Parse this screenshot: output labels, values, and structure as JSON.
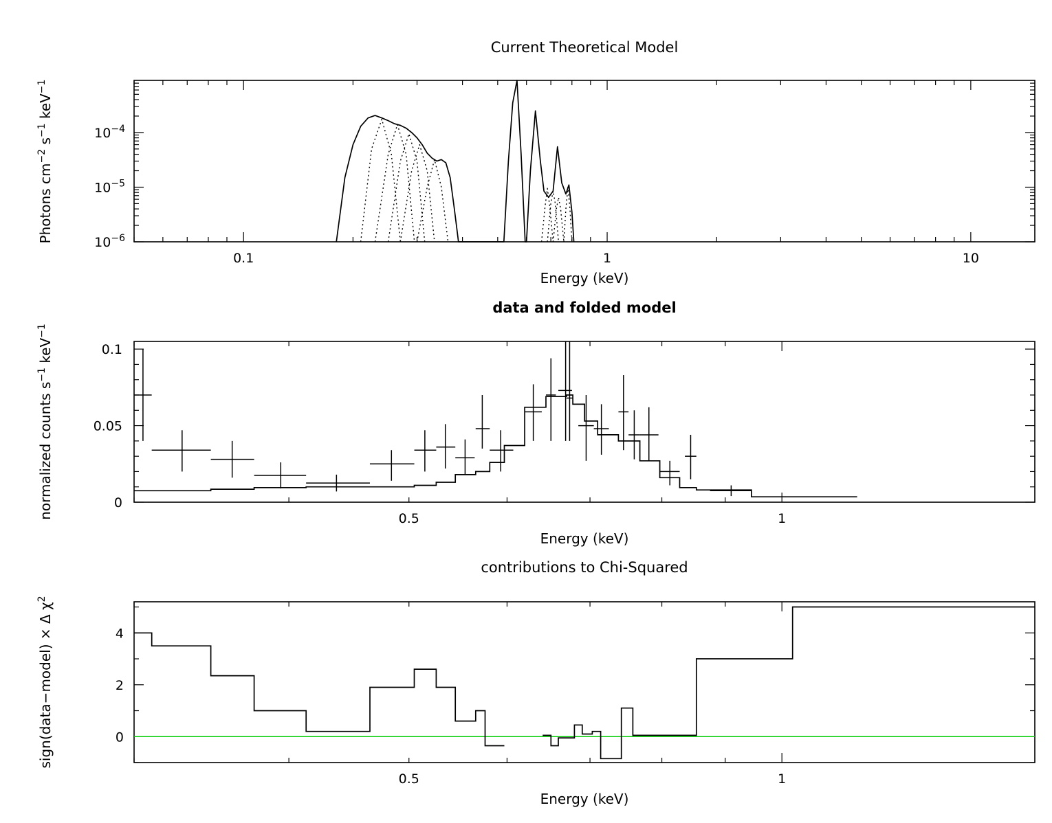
{
  "chart_data": [
    {
      "type": "line",
      "title": "Current Theoretical Model",
      "xlabel": "Energy (keV)",
      "ylabel_parts": [
        "Photons cm",
        "−2",
        " s",
        "−1",
        " keV",
        "−1"
      ],
      "x_scale": "log",
      "y_scale": "log",
      "xlim": [
        0.05,
        15.0
      ],
      "ylim": [
        1e-06,
        0.0009
      ],
      "x_ticks": [
        {
          "value": 0.1,
          "label": "0.1"
        },
        {
          "value": 1,
          "label": "1"
        },
        {
          "value": 10,
          "label": "10"
        }
      ],
      "y_ticks": [
        {
          "value": 1e-06,
          "exp": "−6"
        },
        {
          "value": 1e-05,
          "exp": "−5"
        },
        {
          "value": 0.0001,
          "exp": "−4"
        }
      ],
      "y_tick_base": "10",
      "series": [
        {
          "style": "solid",
          "points": [
            [
              0.18,
              1e-06
            ],
            [
              0.19,
              1.5e-05
            ],
            [
              0.2,
              6e-05
            ],
            [
              0.21,
              0.00013
            ],
            [
              0.22,
              0.000185
            ],
            [
              0.23,
              0.000205
            ],
            [
              0.24,
              0.000185
            ],
            [
              0.25,
              0.000165
            ],
            [
              0.26,
              0.000145
            ],
            [
              0.27,
              0.000135
            ],
            [
              0.28,
              0.00012
            ],
            [
              0.29,
              0.0001
            ],
            [
              0.3,
              8e-05
            ],
            [
              0.31,
              6e-05
            ],
            [
              0.32,
              4.2e-05
            ],
            [
              0.33,
              3.4e-05
            ],
            [
              0.34,
              3e-05
            ],
            [
              0.35,
              3.2e-05
            ],
            [
              0.36,
              2.8e-05
            ],
            [
              0.37,
              1.5e-05
            ],
            [
              0.38,
              4e-06
            ],
            [
              0.39,
              1e-06
            ],
            [
              0.52,
              1e-06
            ],
            [
              0.535,
              3e-05
            ],
            [
              0.55,
              0.00035
            ],
            [
              0.565,
              0.0009
            ],
            [
              0.58,
              4e-05
            ],
            [
              0.595,
              1e-06
            ],
            [
              0.6,
              1e-06
            ],
            [
              0.615,
              2e-05
            ],
            [
              0.635,
              0.00025
            ],
            [
              0.655,
              3e-05
            ],
            [
              0.67,
              8.5e-06
            ],
            [
              0.69,
              6.5e-06
            ],
            [
              0.71,
              8.5e-06
            ],
            [
              0.73,
              5.5e-05
            ],
            [
              0.75,
              1.2e-05
            ],
            [
              0.77,
              7.5e-06
            ],
            [
              0.785,
              1.1e-05
            ],
            [
              0.8,
              3.5e-06
            ],
            [
              0.81,
              1e-06
            ]
          ]
        },
        {
          "style": "dotted",
          "points": [
            [
              0.21,
              1e-06
            ],
            [
              0.225,
              5e-05
            ],
            [
              0.24,
              0.000175
            ],
            [
              0.255,
              4e-05
            ],
            [
              0.27,
              1e-06
            ]
          ]
        },
        {
          "style": "dotted",
          "points": [
            [
              0.23,
              1e-06
            ],
            [
              0.25,
              4e-05
            ],
            [
              0.265,
              0.00014
            ],
            [
              0.28,
              4e-05
            ],
            [
              0.295,
              1e-06
            ]
          ]
        },
        {
          "style": "dotted",
          "points": [
            [
              0.25,
              1e-06
            ],
            [
              0.27,
              3e-05
            ],
            [
              0.285,
              9.5e-05
            ],
            [
              0.3,
              3e-05
            ],
            [
              0.315,
              1e-06
            ]
          ]
        },
        {
          "style": "dotted",
          "points": [
            [
              0.27,
              1e-06
            ],
            [
              0.29,
              2e-05
            ],
            [
              0.305,
              6e-05
            ],
            [
              0.32,
              2e-05
            ],
            [
              0.335,
              1e-06
            ]
          ]
        },
        {
          "style": "dotted",
          "points": [
            [
              0.3,
              1e-06
            ],
            [
              0.32,
              1e-05
            ],
            [
              0.335,
              3.2e-05
            ],
            [
              0.35,
              1e-05
            ],
            [
              0.365,
              1e-06
            ]
          ]
        },
        {
          "style": "dotted",
          "points": [
            [
              0.66,
              1e-06
            ],
            [
              0.675,
              4.5e-06
            ],
            [
              0.685,
              9.5e-06
            ],
            [
              0.695,
              4.5e-06
            ],
            [
              0.71,
              1e-06
            ]
          ]
        },
        {
          "style": "dotted",
          "points": [
            [
              0.685,
              1e-06
            ],
            [
              0.7,
              5e-06
            ],
            [
              0.71,
              8.5e-06
            ],
            [
              0.72,
              5e-06
            ],
            [
              0.735,
              1e-06
            ]
          ]
        },
        {
          "style": "dotted",
          "points": [
            [
              0.71,
              1e-06
            ],
            [
              0.725,
              4e-06
            ],
            [
              0.735,
              6.5e-06
            ],
            [
              0.745,
              4e-06
            ],
            [
              0.76,
              1e-06
            ]
          ]
        },
        {
          "style": "dotted",
          "points": [
            [
              0.76,
              1e-06
            ],
            [
              0.77,
              4e-06
            ],
            [
              0.78,
              1e-05
            ],
            [
              0.79,
              4e-06
            ],
            [
              0.8,
              1e-06
            ]
          ]
        }
      ]
    },
    {
      "type": "scatter",
      "title": "data and folded model",
      "xlabel": "Energy (keV)",
      "ylabel_parts": [
        "normalized counts s",
        "−1",
        " keV",
        "−1"
      ],
      "x_scale": "log",
      "xlim": [
        0.3,
        1.6
      ],
      "ylim": [
        0,
        0.105
      ],
      "x_ticks": [
        {
          "value": 0.5,
          "label": "0.5"
        },
        {
          "value": 1,
          "label": "1"
        }
      ],
      "y_ticks": [
        {
          "value": 0,
          "label": "0"
        },
        {
          "value": 0.05,
          "label": "0.05"
        },
        {
          "value": 0.1,
          "label": "0.1"
        }
      ],
      "data_points": [
        {
          "x": 0.305,
          "xlo": 0.3,
          "xhi": 0.31,
          "y": 0.07,
          "ylo": 0.04,
          "yhi": 0.1
        },
        {
          "x": 0.328,
          "xlo": 0.31,
          "xhi": 0.346,
          "y": 0.034,
          "ylo": 0.02,
          "yhi": 0.047
        },
        {
          "x": 0.36,
          "xlo": 0.346,
          "xhi": 0.375,
          "y": 0.028,
          "ylo": 0.016,
          "yhi": 0.04
        },
        {
          "x": 0.394,
          "xlo": 0.375,
          "xhi": 0.413,
          "y": 0.0175,
          "ylo": 0.009,
          "yhi": 0.026
        },
        {
          "x": 0.437,
          "xlo": 0.413,
          "xhi": 0.465,
          "y": 0.0125,
          "ylo": 0.007,
          "yhi": 0.018
        },
        {
          "x": 0.484,
          "xlo": 0.465,
          "xhi": 0.505,
          "y": 0.025,
          "ylo": 0.014,
          "yhi": 0.034
        },
        {
          "x": 0.515,
          "xlo": 0.505,
          "xhi": 0.526,
          "y": 0.034,
          "ylo": 0.02,
          "yhi": 0.047
        },
        {
          "x": 0.535,
          "xlo": 0.526,
          "xhi": 0.545,
          "y": 0.036,
          "ylo": 0.022,
          "yhi": 0.051
        },
        {
          "x": 0.555,
          "xlo": 0.545,
          "xhi": 0.565,
          "y": 0.029,
          "ylo": 0.018,
          "yhi": 0.041
        },
        {
          "x": 0.573,
          "xlo": 0.566,
          "xhi": 0.581,
          "y": 0.048,
          "ylo": 0.035,
          "yhi": 0.07
        },
        {
          "x": 0.593,
          "xlo": 0.581,
          "xhi": 0.607,
          "y": 0.034,
          "ylo": 0.02,
          "yhi": 0.047
        },
        {
          "x": 0.63,
          "xlo": 0.62,
          "xhi": 0.64,
          "y": 0.059,
          "ylo": 0.04,
          "yhi": 0.077
        },
        {
          "x": 0.651,
          "xlo": 0.645,
          "xhi": 0.657,
          "y": 0.07,
          "ylo": 0.04,
          "yhi": 0.094
        },
        {
          "x": 0.669,
          "xlo": 0.66,
          "xhi": 0.677,
          "y": 0.073,
          "ylo": 0.04,
          "yhi": 0.105
        },
        {
          "x": 0.674,
          "xlo": 0.67,
          "xhi": 0.678,
          "y": 0.068,
          "ylo": 0.04,
          "yhi": 0.105
        },
        {
          "x": 0.695,
          "xlo": 0.685,
          "xhi": 0.705,
          "y": 0.05,
          "ylo": 0.027,
          "yhi": 0.07
        },
        {
          "x": 0.715,
          "xlo": 0.705,
          "xhi": 0.725,
          "y": 0.048,
          "ylo": 0.031,
          "yhi": 0.064
        },
        {
          "x": 0.745,
          "xlo": 0.738,
          "xhi": 0.752,
          "y": 0.059,
          "ylo": 0.034,
          "yhi": 0.083
        },
        {
          "x": 0.76,
          "xlo": 0.752,
          "xhi": 0.768,
          "y": 0.044,
          "ylo": 0.028,
          "yhi": 0.06
        },
        {
          "x": 0.781,
          "xlo": 0.768,
          "xhi": 0.795,
          "y": 0.044,
          "ylo": 0.027,
          "yhi": 0.062
        },
        {
          "x": 0.812,
          "xlo": 0.797,
          "xhi": 0.827,
          "y": 0.02,
          "ylo": 0.011,
          "yhi": 0.027
        },
        {
          "x": 0.844,
          "xlo": 0.835,
          "xhi": 0.853,
          "y": 0.03,
          "ylo": 0.015,
          "yhi": 0.044
        },
        {
          "x": 0.91,
          "xlo": 0.875,
          "xhi": 0.945,
          "y": 0.0075,
          "ylo": 0.004,
          "yhi": 0.011
        }
      ],
      "model_step": [
        [
          0.3,
          0.0075
        ],
        [
          0.346,
          0.0075
        ],
        [
          0.346,
          0.0085
        ],
        [
          0.375,
          0.0085
        ],
        [
          0.375,
          0.0095
        ],
        [
          0.413,
          0.0095
        ],
        [
          0.413,
          0.01
        ],
        [
          0.505,
          0.01
        ],
        [
          0.505,
          0.011
        ],
        [
          0.526,
          0.011
        ],
        [
          0.526,
          0.013
        ],
        [
          0.545,
          0.013
        ],
        [
          0.545,
          0.018
        ],
        [
          0.566,
          0.018
        ],
        [
          0.566,
          0.02
        ],
        [
          0.581,
          0.02
        ],
        [
          0.581,
          0.026
        ],
        [
          0.597,
          0.026
        ],
        [
          0.597,
          0.037
        ],
        [
          0.62,
          0.037
        ],
        [
          0.62,
          0.062
        ],
        [
          0.645,
          0.062
        ],
        [
          0.645,
          0.069
        ],
        [
          0.67,
          0.069
        ],
        [
          0.67,
          0.07
        ],
        [
          0.678,
          0.07
        ],
        [
          0.678,
          0.064
        ],
        [
          0.693,
          0.064
        ],
        [
          0.693,
          0.053
        ],
        [
          0.71,
          0.053
        ],
        [
          0.71,
          0.044
        ],
        [
          0.738,
          0.044
        ],
        [
          0.738,
          0.04
        ],
        [
          0.768,
          0.04
        ],
        [
          0.768,
          0.027
        ],
        [
          0.797,
          0.027
        ],
        [
          0.797,
          0.016
        ],
        [
          0.827,
          0.016
        ],
        [
          0.827,
          0.0095
        ],
        [
          0.853,
          0.0095
        ],
        [
          0.853,
          0.008
        ],
        [
          0.945,
          0.008
        ],
        [
          0.945,
          0.0035
        ],
        [
          1.15,
          0.0035
        ]
      ]
    },
    {
      "type": "line",
      "title": "contributions to Chi-Squared",
      "xlabel": "Energy (keV)",
      "ylabel_parts": [
        "sign(data−model) × Δ χ",
        "2"
      ],
      "x_scale": "log",
      "xlim": [
        0.3,
        1.6
      ],
      "ylim": [
        -1.0,
        5.2
      ],
      "x_ticks": [
        {
          "value": 0.5,
          "label": "0.5"
        },
        {
          "value": 1,
          "label": "1"
        }
      ],
      "y_ticks": [
        {
          "value": 0,
          "label": "0"
        },
        {
          "value": 2,
          "label": "2"
        },
        {
          "value": 4,
          "label": "4"
        }
      ],
      "zero_line_color": "#00cc00",
      "steps": [
        [
          0.3,
          4.0
        ],
        [
          0.31,
          4.0
        ],
        [
          0.31,
          3.5
        ],
        [
          0.346,
          3.5
        ],
        [
          0.346,
          2.35
        ],
        [
          0.375,
          2.35
        ],
        [
          0.375,
          1.0
        ],
        [
          0.413,
          1.0
        ],
        [
          0.413,
          0.2
        ],
        [
          0.465,
          0.2
        ],
        [
          0.465,
          1.9
        ],
        [
          0.505,
          1.9
        ],
        [
          0.505,
          2.6
        ],
        [
          0.526,
          2.6
        ],
        [
          0.526,
          1.9
        ],
        [
          0.545,
          1.9
        ],
        [
          0.545,
          0.6
        ],
        [
          0.566,
          0.6
        ],
        [
          0.566,
          1.0
        ],
        [
          0.576,
          1.0
        ],
        [
          0.576,
          -0.35
        ],
        [
          0.597,
          -0.35
        ],
        [
          null,
          null
        ],
        [
          0.641,
          0.05
        ],
        [
          0.651,
          0.05
        ],
        [
          0.651,
          -0.35
        ],
        [
          0.66,
          -0.35
        ],
        [
          0.66,
          -0.05
        ],
        [
          0.68,
          -0.05
        ],
        [
          0.68,
          0.45
        ],
        [
          0.69,
          0.45
        ],
        [
          0.69,
          0.1
        ],
        [
          0.703,
          0.1
        ],
        [
          0.703,
          0.2
        ],
        [
          0.714,
          0.2
        ],
        [
          0.714,
          -0.85
        ],
        [
          0.742,
          -0.85
        ],
        [
          0.742,
          1.1
        ],
        [
          0.758,
          1.1
        ],
        [
          0.758,
          0.05
        ],
        [
          0.853,
          0.05
        ],
        [
          0.853,
          3.0
        ],
        [
          1.02,
          3.0
        ],
        [
          1.02,
          5.0
        ],
        [
          1.6,
          5.0
        ]
      ]
    }
  ]
}
